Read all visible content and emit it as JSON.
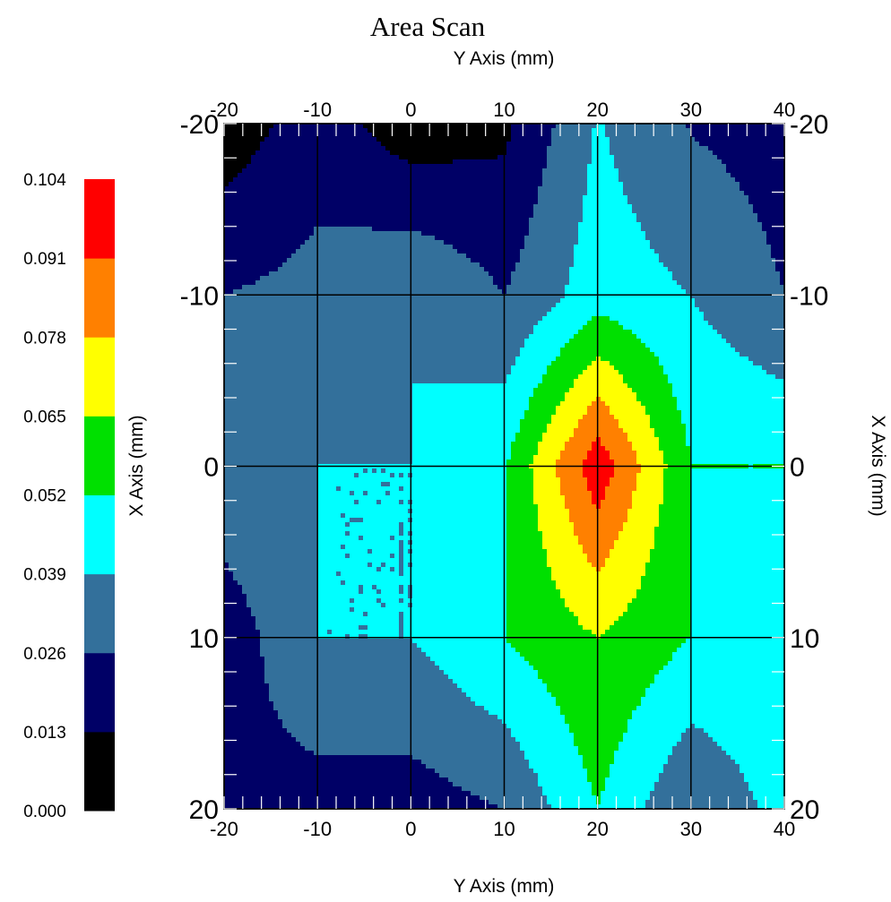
{
  "chart_data": {
    "type": "heatmap",
    "title": "Area Scan",
    "x_axis_label": "X Axis (mm)",
    "y_axis_label": "Y Axis (mm)",
    "y_axis_ticks": [
      "-20",
      "-10",
      "0",
      "10",
      "20",
      "30",
      "40"
    ],
    "x_axis_ticks": [
      "-20",
      "-10",
      "0",
      "10",
      "20"
    ],
    "y_axis_range": [
      -20,
      40
    ],
    "x_axis_range": [
      -20,
      20
    ],
    "grid": true,
    "colorbar": {
      "position": "left",
      "levels": [
        "0.000",
        "0.013",
        "0.026",
        "0.039",
        "0.052",
        "0.065",
        "0.078",
        "0.091",
        "0.104"
      ],
      "colors": [
        "#000000",
        "#000066",
        "#33709B",
        "#00FFFF",
        "#00E000",
        "#FFFF00",
        "#FF8000",
        "#FF0000"
      ]
    },
    "y_coords": [
      -20,
      -10,
      0,
      10,
      20,
      30,
      40
    ],
    "x_coords": [
      -20,
      -10,
      0,
      10,
      20
    ],
    "values": [
      [
        0.005,
        0.02,
        0.005,
        0.01,
        0.04,
        0.025,
        0.02
      ],
      [
        0.026,
        0.03,
        0.039,
        0.026,
        0.046,
        0.039,
        0.026
      ],
      [
        0.036,
        0.039,
        0.039,
        0.051,
        0.1,
        0.052,
        0.052
      ],
      [
        0.018,
        0.039,
        0.039,
        0.052,
        0.065,
        0.052,
        0.05
      ],
      [
        0.023,
        0.02,
        0.02,
        0.026,
        0.052,
        0.026,
        0.044
      ]
    ]
  }
}
